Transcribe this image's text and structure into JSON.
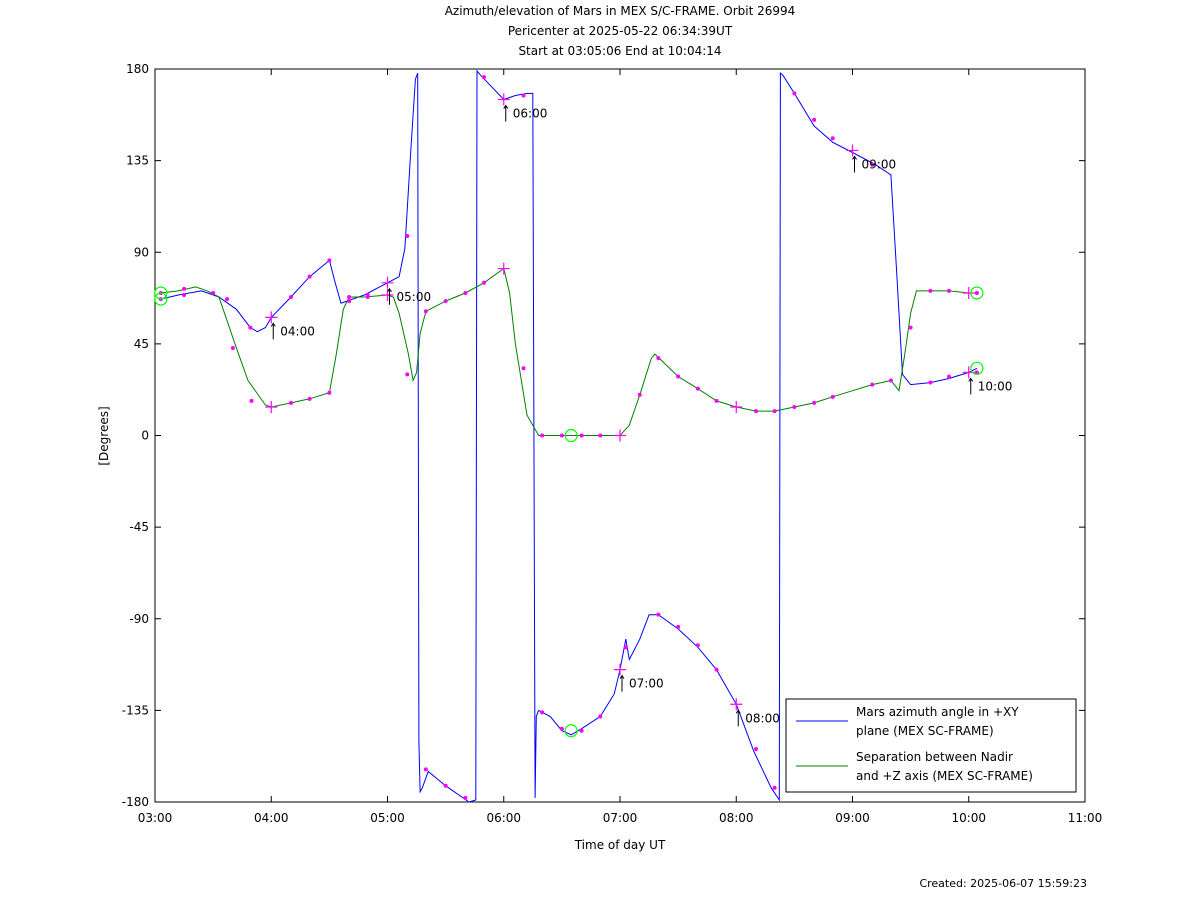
{
  "title_lines": [
    "Azimuth/elevation of Mars in MEX S/C-FRAME.  Orbit 26994",
    "Pericenter at 2025-05-22 06:34:39UT",
    "Start at 03:05:06 End at 10:04:14"
  ],
  "created": "Created: 2025-06-07 15:59:23",
  "colors": {
    "azimuth": "#0000ff",
    "separation": "#008000",
    "marker": "#ff00ff",
    "circle": "#00ff00"
  },
  "chart_data": {
    "type": "line",
    "xlabel": "Time of day UT",
    "ylabel": "[Degrees]",
    "xlim": [
      3.0,
      11.0
    ],
    "ylim": [
      -180,
      180
    ],
    "x_ticks": [
      3,
      4,
      5,
      6,
      7,
      8,
      9,
      10,
      11
    ],
    "x_tick_labels": [
      "03:00",
      "04:00",
      "05:00",
      "06:00",
      "07:00",
      "08:00",
      "09:00",
      "10:00",
      "11:00"
    ],
    "y_ticks": [
      180,
      135,
      90,
      45,
      0,
      -45,
      -90,
      -135,
      -180
    ],
    "y_tick_labels": [
      "180",
      "135",
      "90",
      "45",
      "0",
      "-45",
      "-90",
      "-135",
      "-180"
    ],
    "legend": {
      "placement": "bottom-right",
      "entries": [
        [
          "Mars azimuth angle in +XY",
          "plane (MEX SC-FRAME)"
        ],
        [
          "Separation between Nadir",
          "and +Z axis (MEX SC-FRAME)"
        ]
      ]
    },
    "series": [
      {
        "name": "Mars azimuth angle in +XY plane (MEX SC-FRAME)",
        "color": "#0000ff",
        "x": [
          3.05,
          3.2,
          3.4,
          3.55,
          3.7,
          3.82,
          3.88,
          3.95,
          4.0,
          4.17,
          4.33,
          4.5,
          4.55,
          4.6,
          4.65,
          4.8,
          5.0,
          5.1,
          5.15,
          5.2,
          5.24,
          5.26,
          5.27,
          5.28,
          5.3,
          5.35,
          5.5,
          5.7,
          5.76,
          5.77,
          5.8,
          5.9,
          6.0,
          6.1,
          6.2,
          6.25,
          6.27,
          6.28,
          6.3,
          6.4,
          6.5,
          6.58,
          6.67,
          6.83,
          6.95,
          7.0,
          7.05,
          7.08,
          7.17,
          7.25,
          7.33,
          7.5,
          7.67,
          7.83,
          8.0,
          8.15,
          8.3,
          8.37,
          8.38,
          8.4,
          8.5,
          8.67,
          8.83,
          9.0,
          9.2,
          9.33,
          9.38,
          9.43,
          9.5,
          9.67,
          9.83,
          10.0,
          10.07
        ],
        "y": [
          67,
          69,
          71,
          68,
          62,
          53,
          51,
          53,
          58,
          68,
          78,
          86,
          75,
          65,
          66,
          69,
          75,
          78,
          92,
          140,
          175,
          178,
          -150,
          -175,
          -173,
          -165,
          -172,
          -180,
          -179,
          179,
          177,
          171,
          165,
          167,
          168,
          168,
          -178,
          -138,
          -135,
          -138,
          -145,
          -147,
          -144,
          -138,
          -127,
          -115,
          -100,
          -110,
          -100,
          -88,
          -88,
          -95,
          -104,
          -115,
          -132,
          -155,
          -173,
          -179,
          178,
          177,
          168,
          152,
          144,
          139,
          133,
          128,
          80,
          30,
          25,
          26,
          28,
          31,
          33
        ]
      },
      {
        "name": "Separation between Nadir and +Z axis (MEX SC-FRAME)",
        "color": "#008000",
        "x": [
          3.05,
          3.2,
          3.35,
          3.45,
          3.55,
          3.7,
          3.8,
          3.95,
          4.0,
          4.17,
          4.33,
          4.5,
          4.56,
          4.62,
          4.67,
          4.8,
          5.0,
          5.05,
          5.1,
          5.18,
          5.22,
          5.25,
          5.28,
          5.33,
          5.5,
          5.67,
          5.83,
          6.0,
          6.05,
          6.1,
          6.2,
          6.3,
          6.5,
          6.6,
          6.8,
          7.0,
          7.08,
          7.17,
          7.27,
          7.3,
          7.5,
          7.67,
          7.83,
          8.0,
          8.17,
          8.33,
          8.5,
          8.67,
          8.83,
          9.0,
          9.17,
          9.33,
          9.4,
          9.45,
          9.5,
          9.55,
          9.67,
          9.83,
          10.0,
          10.07
        ],
        "y": [
          70,
          71,
          73,
          71,
          68,
          43,
          27,
          15,
          14,
          16,
          18,
          21,
          40,
          62,
          68,
          68,
          69,
          68,
          60,
          40,
          27,
          31,
          50,
          61,
          66,
          70,
          75,
          82,
          70,
          45,
          10,
          0,
          0,
          0,
          0,
          0,
          5,
          20,
          38,
          40,
          29,
          23,
          17,
          14,
          12,
          12,
          14,
          16,
          19,
          22,
          25,
          27,
          22,
          40,
          60,
          71,
          71,
          71,
          70,
          70
        ]
      }
    ],
    "markers": [
      {
        "x": 3.05,
        "y": 67
      },
      {
        "x": 3.25,
        "y": 69
      },
      {
        "x": 3.5,
        "y": 70
      },
      {
        "x": 3.62,
        "y": 67
      },
      {
        "x": 3.82,
        "y": 53
      },
      {
        "x": 4.17,
        "y": 68
      },
      {
        "x": 4.33,
        "y": 78
      },
      {
        "x": 4.5,
        "y": 86
      },
      {
        "x": 4.67,
        "y": 66
      },
      {
        "x": 4.83,
        "y": 69
      },
      {
        "x": 5.17,
        "y": 98
      },
      {
        "x": 5.33,
        "y": -164
      },
      {
        "x": 5.5,
        "y": -172
      },
      {
        "x": 5.67,
        "y": -178
      },
      {
        "x": 5.83,
        "y": 176
      },
      {
        "x": 6.17,
        "y": 167
      },
      {
        "x": 6.33,
        "y": -136
      },
      {
        "x": 6.5,
        "y": -144
      },
      {
        "x": 6.67,
        "y": -145
      },
      {
        "x": 6.83,
        "y": -138
      },
      {
        "x": 7.05,
        "y": -104
      },
      {
        "x": 7.33,
        "y": -88
      },
      {
        "x": 7.5,
        "y": -94
      },
      {
        "x": 7.67,
        "y": -103
      },
      {
        "x": 7.83,
        "y": -115
      },
      {
        "x": 8.17,
        "y": -154
      },
      {
        "x": 8.33,
        "y": -173
      },
      {
        "x": 8.5,
        "y": 168
      },
      {
        "x": 8.67,
        "y": 155
      },
      {
        "x": 8.83,
        "y": 146
      },
      {
        "x": 9.17,
        "y": 133
      },
      {
        "x": 9.5,
        "y": 53
      },
      {
        "x": 9.67,
        "y": 26
      },
      {
        "x": 9.83,
        "y": 29
      },
      {
        "x": 10.07,
        "y": 31
      },
      {
        "x": 3.05,
        "y": 70
      },
      {
        "x": 3.25,
        "y": 72
      },
      {
        "x": 3.67,
        "y": 43
      },
      {
        "x": 3.83,
        "y": 17
      },
      {
        "x": 4.17,
        "y": 16
      },
      {
        "x": 4.33,
        "y": 18
      },
      {
        "x": 4.5,
        "y": 21
      },
      {
        "x": 4.67,
        "y": 68
      },
      {
        "x": 4.83,
        "y": 68
      },
      {
        "x": 5.17,
        "y": 30
      },
      {
        "x": 5.33,
        "y": 61
      },
      {
        "x": 5.5,
        "y": 66
      },
      {
        "x": 5.67,
        "y": 70
      },
      {
        "x": 5.83,
        "y": 75
      },
      {
        "x": 6.17,
        "y": 33
      },
      {
        "x": 6.33,
        "y": 0
      },
      {
        "x": 6.5,
        "y": 0
      },
      {
        "x": 6.67,
        "y": 0
      },
      {
        "x": 6.83,
        "y": 0
      },
      {
        "x": 7.17,
        "y": 20
      },
      {
        "x": 7.33,
        "y": 38
      },
      {
        "x": 7.5,
        "y": 29
      },
      {
        "x": 7.67,
        "y": 23
      },
      {
        "x": 7.83,
        "y": 17
      },
      {
        "x": 8.17,
        "y": 12
      },
      {
        "x": 8.33,
        "y": 12
      },
      {
        "x": 8.5,
        "y": 14
      },
      {
        "x": 8.67,
        "y": 16
      },
      {
        "x": 8.83,
        "y": 19
      },
      {
        "x": 9.17,
        "y": 25
      },
      {
        "x": 9.33,
        "y": 27
      },
      {
        "x": 9.67,
        "y": 71
      },
      {
        "x": 9.83,
        "y": 71
      },
      {
        "x": 10.07,
        "y": 70
      }
    ],
    "hour_marks": [
      {
        "label": "04:00",
        "x": 4.0,
        "y": 58
      },
      {
        "label": "05:00",
        "x": 5.0,
        "y": 75
      },
      {
        "label": "06:00",
        "x": 6.0,
        "y": 165
      },
      {
        "label": "07:00",
        "x": 7.0,
        "y": -115
      },
      {
        "label": "08:00",
        "x": 8.0,
        "y": -132
      },
      {
        "label": "09:00",
        "x": 9.0,
        "y": 140
      },
      {
        "label": "10:00",
        "x": 10.0,
        "y": 31
      }
    ],
    "extra_crosses": [
      {
        "x": 4.0,
        "y": 14
      },
      {
        "x": 5.0,
        "y": 69
      },
      {
        "x": 6.0,
        "y": 82
      },
      {
        "x": 7.0,
        "y": 0
      },
      {
        "x": 8.0,
        "y": 14
      },
      {
        "x": 10.0,
        "y": 70
      }
    ],
    "circles": [
      {
        "x": 3.05,
        "y": 67
      },
      {
        "x": 3.05,
        "y": 70
      },
      {
        "x": 6.58,
        "y": -145
      },
      {
        "x": 6.58,
        "y": 0
      },
      {
        "x": 10.07,
        "y": 33
      },
      {
        "x": 10.07,
        "y": 70
      }
    ]
  }
}
